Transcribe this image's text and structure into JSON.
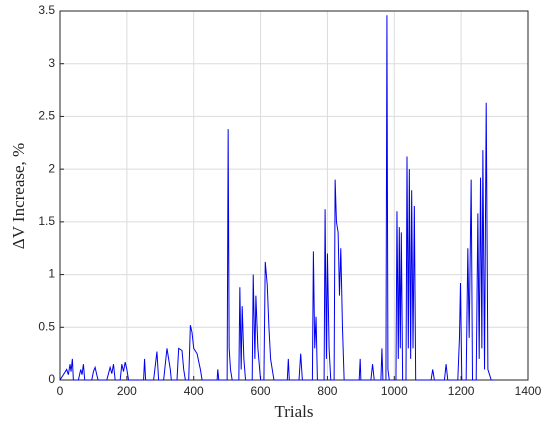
{
  "chart_data": {
    "type": "line",
    "xlabel": "Trials",
    "ylabel": "ΔV Increase, %",
    "xlim": [
      0,
      1400
    ],
    "xticks": [
      0,
      200,
      400,
      600,
      800,
      1000,
      1200,
      1400
    ],
    "ylim": [
      0,
      3.5
    ],
    "yticks": [
      0,
      0.5,
      1,
      1.5,
      2,
      2.5,
      3,
      3.5
    ],
    "grid": true,
    "series": [
      {
        "color": "#0000ee",
        "x": [
          0,
          10,
          20,
          25,
          30,
          33,
          37,
          40,
          55,
          62,
          66,
          70,
          74,
          95,
          100,
          105,
          110,
          114,
          140,
          150,
          155,
          160,
          165,
          180,
          185,
          190,
          195,
          200,
          205,
          250,
          253,
          256,
          280,
          290,
          295,
          310,
          320,
          330,
          333,
          350,
          355,
          365,
          370,
          375,
          385,
          390,
          395,
          400,
          410,
          420,
          425,
          470,
          472,
          475,
          500,
          503,
          506,
          510,
          515,
          535,
          538,
          542,
          545,
          550,
          555,
          575,
          578,
          583,
          586,
          592,
          600,
          610,
          614,
          620,
          625,
          630,
          640,
          680,
          683,
          686,
          715,
          720,
          725,
          755,
          758,
          762,
          766,
          770,
          790,
          793,
          797,
          800,
          805,
          810,
          820,
          823,
          827,
          832,
          836,
          840,
          845,
          850,
          895,
          898,
          900,
          930,
          935,
          940,
          960,
          963,
          966,
          975,
          978,
          981,
          985,
          1005,
          1008,
          1012,
          1015,
          1018,
          1021,
          1025,
          1035,
          1038,
          1042,
          1045,
          1049,
          1052,
          1056,
          1060,
          1064,
          1110,
          1115,
          1120,
          1150,
          1155,
          1160,
          1190,
          1195,
          1198,
          1202,
          1215,
          1220,
          1224,
          1230,
          1234,
          1245,
          1250,
          1254,
          1258,
          1262,
          1265,
          1270,
          1275,
          1280,
          1290,
          1300
        ],
        "values": [
          0,
          0.05,
          0.1,
          0.05,
          0.15,
          0.08,
          0.2,
          0,
          0,
          0.1,
          0.05,
          0.15,
          0,
          0,
          0.08,
          0.12,
          0.05,
          0,
          0,
          0.12,
          0.06,
          0.15,
          0,
          0,
          0.15,
          0.08,
          0.17,
          0.1,
          0,
          0,
          0.2,
          0,
          0,
          0.27,
          0,
          0,
          0.3,
          0.1,
          0,
          0,
          0.3,
          0.28,
          0.1,
          0,
          0,
          0.52,
          0.45,
          0.3,
          0.25,
          0.1,
          0,
          0,
          0.1,
          0,
          0,
          2.38,
          0.3,
          0.1,
          0,
          0,
          0.88,
          0.1,
          0.7,
          0.2,
          0,
          0,
          1,
          0.2,
          0.8,
          0.3,
          0,
          0,
          1.12,
          0.9,
          0.5,
          0.2,
          0,
          0,
          0.2,
          0,
          0,
          0.25,
          0,
          0,
          1.22,
          0.3,
          0.6,
          0,
          0,
          1.62,
          0.2,
          1.2,
          0.3,
          0,
          0,
          1.9,
          1.5,
          1.4,
          0.8,
          1.25,
          0.5,
          0,
          0,
          0.2,
          0,
          0,
          0.15,
          0,
          0,
          0.3,
          0,
          0,
          3.46,
          0.1,
          0,
          0,
          1.6,
          0.2,
          1.45,
          0.3,
          1.4,
          0,
          0,
          2.12,
          0.3,
          2,
          0.2,
          1.8,
          0.3,
          1.65,
          0,
          0,
          0.1,
          0,
          0,
          0.15,
          0,
          0,
          0.4,
          0.92,
          0,
          0,
          1.25,
          0.4,
          1.9,
          0,
          0,
          1.58,
          0.2,
          1.92,
          0.3,
          2.18,
          0.1,
          2.63,
          0.1,
          0,
          0
        ]
      }
    ]
  }
}
